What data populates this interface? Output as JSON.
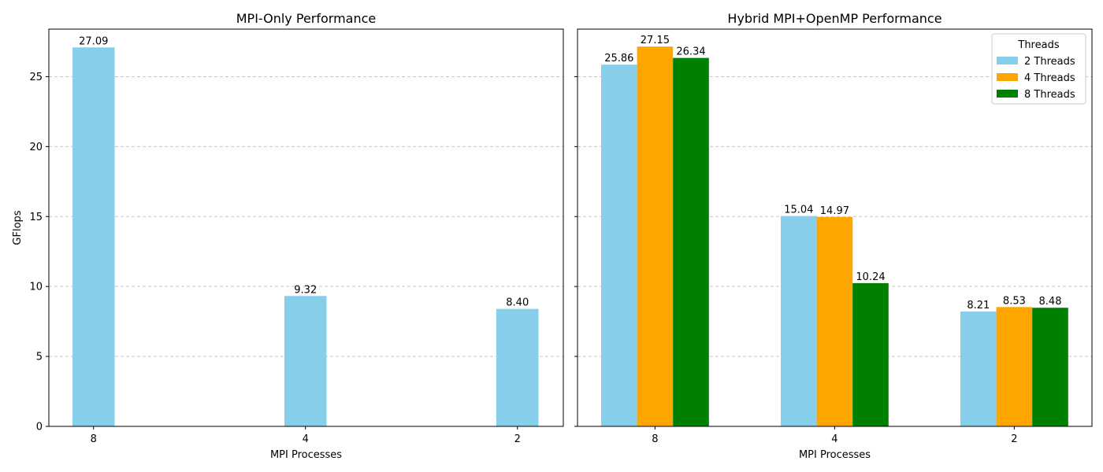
{
  "chart_data": [
    {
      "type": "bar",
      "title": "MPI-Only Performance",
      "xlabel": "MPI Processes",
      "ylabel": "GFlops",
      "categories": [
        "8",
        "4",
        "2"
      ],
      "series": [
        {
          "values": [
            27.09,
            9.32,
            8.4
          ],
          "labels": [
            "27.09",
            "9.32",
            "8.40"
          ],
          "color": "#87ceeb"
        }
      ],
      "yticks": [
        0,
        5,
        10,
        15,
        20,
        25
      ],
      "ylim": [
        0,
        28.4
      ],
      "grid": "y-dashed"
    },
    {
      "type": "bar",
      "title": "Hybrid MPI+OpenMP Performance",
      "xlabel": "MPI Processes",
      "ylabel": "",
      "categories": [
        "8",
        "4",
        "2"
      ],
      "series": [
        {
          "name": "2 Threads",
          "values": [
            25.86,
            15.04,
            8.21
          ],
          "labels": [
            "25.86",
            "15.04",
            "8.21"
          ],
          "color": "#87ceeb"
        },
        {
          "name": "4 Threads",
          "values": [
            27.15,
            14.97,
            8.53
          ],
          "labels": [
            "27.15",
            "14.97",
            "8.53"
          ],
          "color": "#ffa500"
        },
        {
          "name": "8 Threads",
          "values": [
            26.34,
            10.24,
            8.48
          ],
          "labels": [
            "26.34",
            "10.24",
            "8.48"
          ],
          "color": "#008000"
        }
      ],
      "yticks": [
        0,
        5,
        10,
        15,
        20,
        25
      ],
      "ylim": [
        0,
        28.4
      ],
      "grid": "y-dashed",
      "legend": {
        "title": "Threads",
        "position": "top-right"
      }
    }
  ]
}
